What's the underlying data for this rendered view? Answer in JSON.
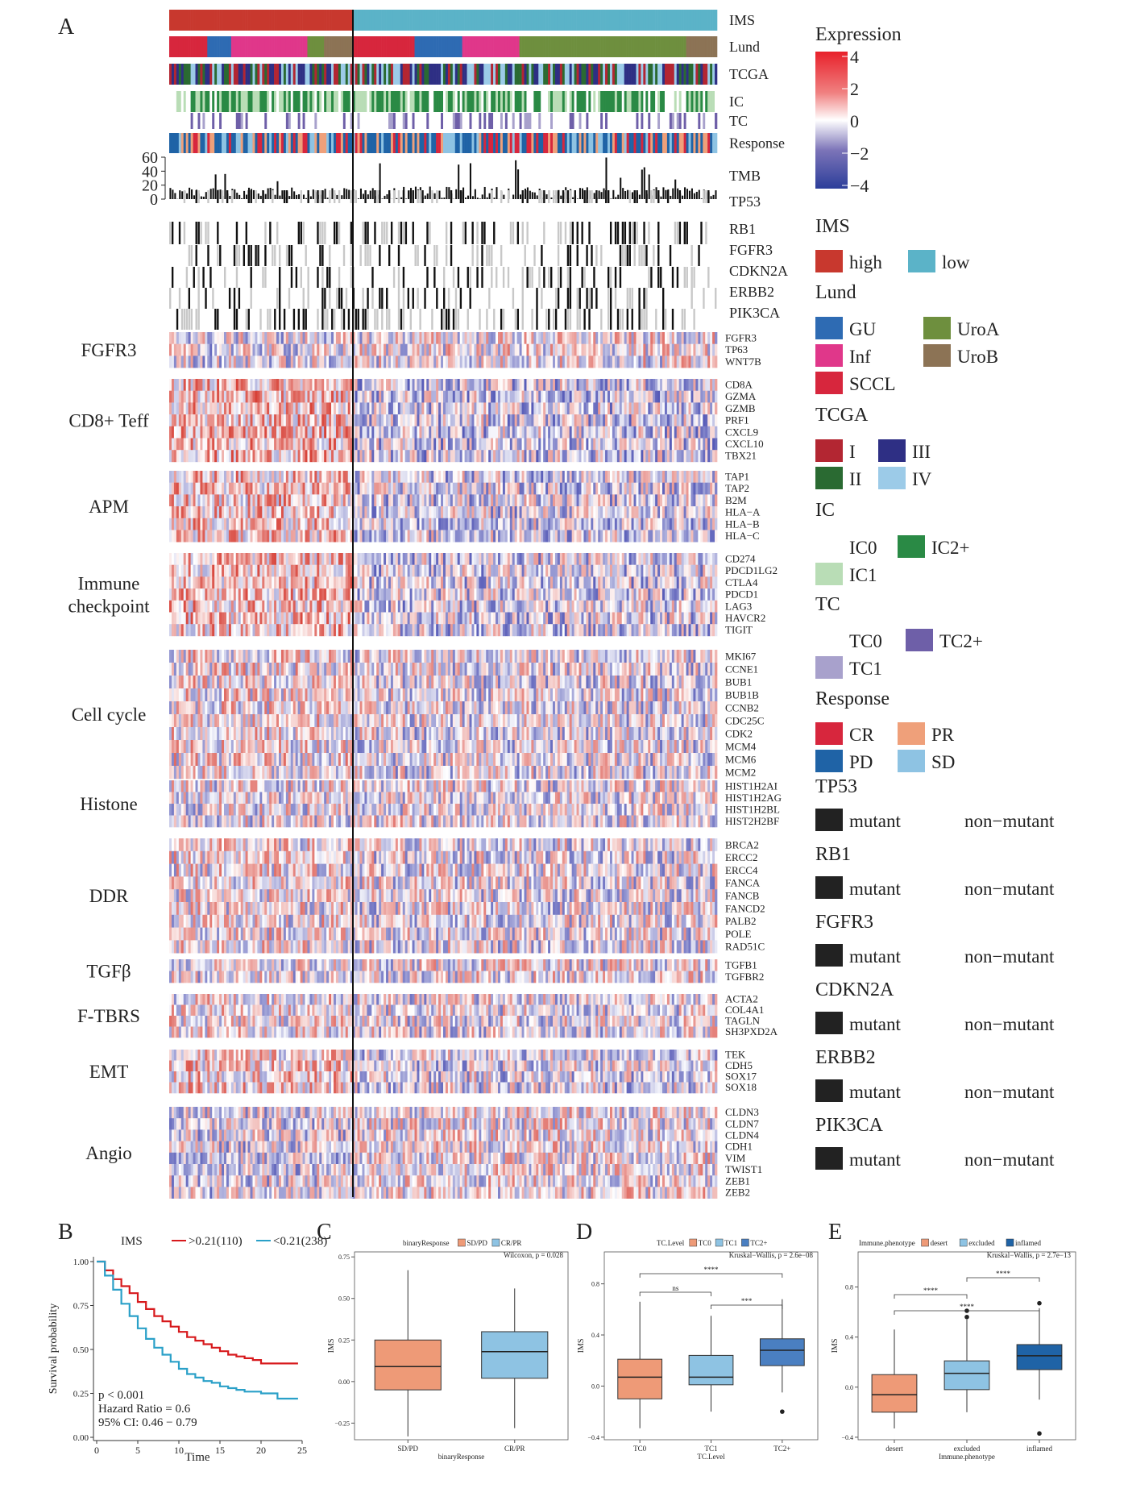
{
  "heatmap": {
    "panel_letter": "A",
    "annotation_tracks": [
      "IMS",
      "Lund",
      "TCGA",
      "IC",
      "TC",
      "Response"
    ],
    "tmb": {
      "label": "TMB",
      "ticks": [
        "60",
        "40",
        "20",
        "0"
      ],
      "range": [
        0,
        60
      ]
    },
    "mutation_tracks": [
      "TP53",
      "RB1",
      "FGFR3",
      "CDKN2A",
      "ERBB2",
      "PIK3CA"
    ],
    "groups": [
      {
        "name": "FGFR3",
        "lines": [
          "FGFR3"
        ],
        "genes": [
          "FGFR3",
          "TP63",
          "WNT7B"
        ]
      },
      {
        "name": "CD8+ Teff",
        "lines": [
          "CD8+ Teff"
        ],
        "genes": [
          "CD8A",
          "GZMA",
          "GZMB",
          "PRF1",
          "CXCL9",
          "CXCL10",
          "TBX21"
        ]
      },
      {
        "name": "APM",
        "lines": [
          "APM"
        ],
        "genes": [
          "TAP1",
          "TAP2",
          "B2M",
          "HLA−A",
          "HLA−B",
          "HLA−C"
        ]
      },
      {
        "name": "Immune checkpoint",
        "lines": [
          "Immune",
          "checkpoint"
        ],
        "genes": [
          "CD274",
          "PDCD1LG2",
          "CTLA4",
          "PDCD1",
          "LAG3",
          "HAVCR2",
          "TIGIT"
        ]
      },
      {
        "name": "Cell cycle",
        "lines": [
          "Cell cycle"
        ],
        "genes": [
          "MKI67",
          "CCNE1",
          "BUB1",
          "BUB1B",
          "CCNB2",
          "CDC25C",
          "CDK2",
          "MCM4",
          "MCM6",
          "MCM2"
        ]
      },
      {
        "name": "Histone",
        "lines": [
          "Histone"
        ],
        "genes": [
          "HIST1H2AI",
          "HIST1H2AG",
          "HIST1H2BL",
          "HIST2H2BF"
        ]
      },
      {
        "name": "DDR",
        "lines": [
          "DDR"
        ],
        "genes": [
          "BRCA2",
          "ERCC2",
          "ERCC4",
          "FANCA",
          "FANCB",
          "FANCD2",
          "PALB2",
          "POLE",
          "RAD51C"
        ]
      },
      {
        "name": "TGFβ",
        "lines": [
          "TGFβ"
        ],
        "genes": [
          "TGFB1",
          "TGFBR2"
        ]
      },
      {
        "name": "F-TBRS",
        "lines": [
          "F-TBRS"
        ],
        "genes": [
          "ACTA2",
          "COL4A1",
          "TAGLN",
          "SH3PXD2A"
        ]
      },
      {
        "name": "EMT",
        "lines": [
          "EMT"
        ],
        "genes": [
          "TEK",
          "CDH5",
          "SOX17",
          "SOX18"
        ]
      },
      {
        "name": "Angio",
        "lines": [
          "Angio"
        ],
        "genes": [
          "CLDN3",
          "CLDN7",
          "CLDN4",
          "CDH1",
          "VIM",
          "TWIST1",
          "ZEB1",
          "ZEB2"
        ]
      }
    ]
  },
  "legend": {
    "expression": {
      "title": "Expression",
      "ticks": [
        "4",
        "2",
        "0",
        "−2",
        "−4"
      ]
    },
    "sections": [
      {
        "title": "IMS",
        "items": [
          {
            "label": "high",
            "color": "#C8382E"
          },
          {
            "label": "low",
            "color": "#5BB3C8"
          }
        ]
      },
      {
        "title": "Lund",
        "items": [
          {
            "label": "GU",
            "color": "#2E6BB3"
          },
          {
            "label": "UroA",
            "color": "#6E8F3E"
          },
          {
            "label": "Inf",
            "color": "#E0378A"
          },
          {
            "label": "UroB",
            "color": "#8C7355"
          },
          {
            "label": "SCCL",
            "color": "#D7263D"
          }
        ]
      },
      {
        "title": "TCGA",
        "items": [
          {
            "label": "I",
            "color": "#B32632"
          },
          {
            "label": "III",
            "color": "#2E2F84"
          },
          {
            "label": "II",
            "color": "#2A6A32"
          },
          {
            "label": "IV",
            "color": "#9CCBE8"
          }
        ]
      },
      {
        "title": "IC",
        "items": [
          {
            "label": "IC0",
            "color": "#FFFFFF"
          },
          {
            "label": "IC2+",
            "color": "#2A8A45"
          },
          {
            "label": "IC1",
            "color": "#B9DDB6"
          }
        ]
      },
      {
        "title": "TC",
        "items": [
          {
            "label": "TC0",
            "color": "#FFFFFF"
          },
          {
            "label": "TC2+",
            "color": "#6E5FA8"
          },
          {
            "label": "TC1",
            "color": "#A8A1CC"
          }
        ]
      },
      {
        "title": "Response",
        "items": [
          {
            "label": "CR",
            "color": "#D7263D"
          },
          {
            "label": "PR",
            "color": "#EFA07A"
          },
          {
            "label": "PD",
            "color": "#1F63A6"
          },
          {
            "label": "SD",
            "color": "#8EC3E3"
          }
        ]
      }
    ],
    "mutation_sections": [
      {
        "title": "TP53",
        "mutant": "mutant",
        "non": "non−mutant"
      },
      {
        "title": "RB1",
        "mutant": "mutant",
        "non": "non−mutant"
      },
      {
        "title": "FGFR3",
        "mutant": "mutant",
        "non": "non−mutant"
      },
      {
        "title": "CDKN2A",
        "mutant": "mutant",
        "non": "non−mutant"
      },
      {
        "title": "ERBB2",
        "mutant": "mutant",
        "non": "non−mutant"
      },
      {
        "title": "PIK3CA",
        "mutant": "mutant",
        "non": "non−mutant"
      }
    ]
  },
  "km": {
    "panel_letter": "B",
    "legend_title": "IMS",
    "ylabel": "Survival probability",
    "xlabel": "Time",
    "xticks": [
      "0",
      "5",
      "10",
      "15",
      "20",
      "25"
    ],
    "yticks": [
      "0.00",
      "0.25",
      "0.50",
      "0.75",
      "1.00"
    ],
    "annot": [
      "p < 0.001",
      "Hazard Ratio = 0.6",
      "95% CI: 0.46 − 0.79"
    ],
    "series": [
      {
        "name": ">0.21(110)",
        "color": "#D7191C",
        "t": [
          0,
          1,
          2,
          3,
          4,
          5,
          6,
          7,
          8,
          9,
          10,
          11,
          12,
          13,
          14,
          15,
          16,
          17,
          18,
          19,
          20,
          21,
          22,
          24.5
        ],
        "s": [
          1.0,
          0.95,
          0.9,
          0.86,
          0.82,
          0.77,
          0.73,
          0.69,
          0.66,
          0.63,
          0.6,
          0.57,
          0.55,
          0.53,
          0.51,
          0.49,
          0.47,
          0.46,
          0.45,
          0.44,
          0.42,
          0.42,
          0.42,
          0.42
        ]
      },
      {
        "name": "<0.21(238)",
        "color": "#2AA0C8",
        "t": [
          0,
          1,
          2,
          3,
          4,
          5,
          6,
          7,
          8,
          9,
          10,
          11,
          12,
          13,
          14,
          15,
          16,
          17,
          18,
          19,
          20,
          21,
          22,
          24.5
        ],
        "s": [
          1.0,
          0.92,
          0.84,
          0.76,
          0.69,
          0.62,
          0.56,
          0.51,
          0.47,
          0.43,
          0.39,
          0.36,
          0.34,
          0.32,
          0.31,
          0.29,
          0.28,
          0.27,
          0.26,
          0.26,
          0.25,
          0.25,
          0.22,
          0.22
        ]
      }
    ]
  },
  "box_c": {
    "panel_letter": "C",
    "legend_title": "binaryResponse",
    "stat": "Wilcoxon, p = 0.028",
    "ylabel": "IMS",
    "xlabel": "binaryResponse",
    "ylim": [
      -0.35,
      0.78
    ],
    "yticks": [
      -0.25,
      0.0,
      0.25,
      0.5,
      0.75
    ],
    "yticklabels": [
      "−0.25",
      "0.00",
      "0.25",
      "0.50",
      "0.75"
    ],
    "boxes": [
      {
        "name": "SD/PD",
        "color": "#EE9A77",
        "min": -0.33,
        "q1": -0.05,
        "med": 0.09,
        "q3": 0.25,
        "max": 0.67,
        "outliers": []
      },
      {
        "name": "CR/PR",
        "color": "#8EC3E3",
        "min": -0.28,
        "q1": 0.02,
        "med": 0.18,
        "q3": 0.3,
        "max": 0.56,
        "outliers": []
      }
    ]
  },
  "box_d": {
    "panel_letter": "D",
    "legend_title": "TC.Level",
    "stat": "Kruskal−Wallis, p = 2.6e−08",
    "ylabel": "IMS",
    "xlabel": "TC.Level",
    "ylim": [
      -0.42,
      1.05
    ],
    "yticks": [
      -0.4,
      0.0,
      0.4,
      0.8
    ],
    "yticklabels": [
      "−0.4",
      "0.0",
      "0.4",
      "0.8"
    ],
    "brackets": [
      {
        "from": 0,
        "to": 2,
        "label": "****"
      },
      {
        "from": 0,
        "to": 1,
        "label": "ns"
      },
      {
        "from": 1,
        "to": 2,
        "label": "***"
      }
    ],
    "boxes": [
      {
        "name": "TC0",
        "color": "#EE9A77",
        "min": -0.33,
        "q1": -0.1,
        "med": 0.07,
        "q3": 0.21,
        "max": 0.66,
        "outliers": []
      },
      {
        "name": "TC1",
        "color": "#8EC3E3",
        "min": -0.2,
        "q1": 0.01,
        "med": 0.07,
        "q3": 0.24,
        "max": 0.55,
        "outliers": []
      },
      {
        "name": "TC2+",
        "color": "#4A7FC1",
        "min": -0.05,
        "q1": 0.16,
        "med": 0.28,
        "q3": 0.37,
        "max": 0.68,
        "outliers": [
          -0.2
        ]
      }
    ]
  },
  "box_e": {
    "panel_letter": "E",
    "legend_title": "Immune.phenotype",
    "stat": "Kruskal−Wallis, p = 2.7e−13",
    "ylabel": "IMS",
    "xlabel": "Immune.phenotype",
    "ylim": [
      -0.42,
      1.08
    ],
    "yticks": [
      -0.4,
      0.0,
      0.4,
      0.8
    ],
    "yticklabels": [
      "−0.4",
      "0.0",
      "0.4",
      "0.8"
    ],
    "brackets": [
      {
        "from": 0,
        "to": 1,
        "label": "****"
      },
      {
        "from": 0,
        "to": 2,
        "label": "****"
      },
      {
        "from": 1,
        "to": 2,
        "label": "****"
      }
    ],
    "boxes": [
      {
        "name": "desert",
        "color": "#EE9A77",
        "min": -0.33,
        "q1": -0.2,
        "med": -0.06,
        "q3": 0.1,
        "max": 0.46,
        "outliers": []
      },
      {
        "name": "excluded",
        "color": "#8EC3E3",
        "min": -0.2,
        "q1": -0.02,
        "med": 0.11,
        "q3": 0.21,
        "max": 0.54,
        "outliers": [
          0.56,
          0.61
        ]
      },
      {
        "name": "inflamed",
        "color": "#1F63A6",
        "min": -0.1,
        "q1": 0.14,
        "med": 0.25,
        "q3": 0.34,
        "max": 0.63,
        "outliers": [
          0.67,
          -0.37
        ]
      }
    ]
  }
}
